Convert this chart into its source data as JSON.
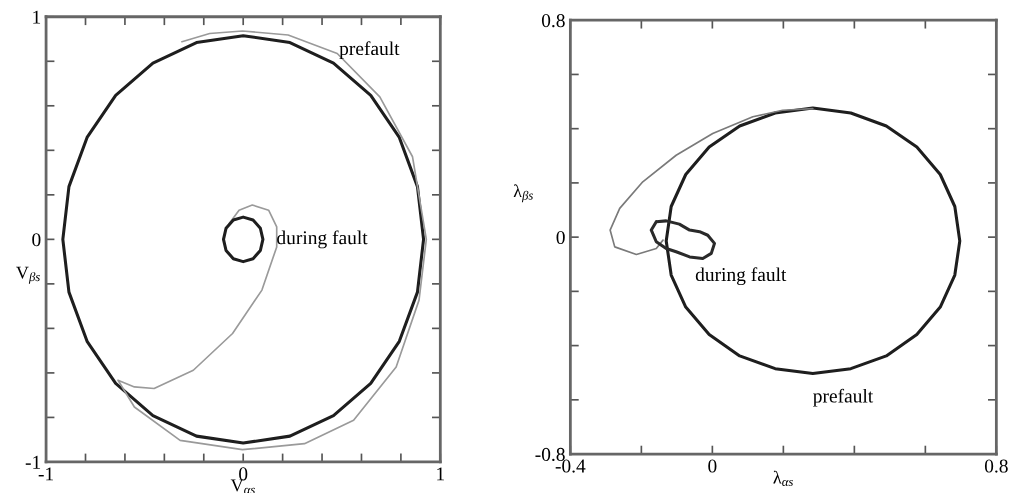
{
  "chart_data": [
    {
      "type": "line",
      "xlabel": "V$_{αs}$",
      "ylabel": "V$_{βs}$",
      "xlim": [
        -1,
        1
      ],
      "ylim": [
        -1,
        1
      ],
      "xticks": [
        -1,
        {
          "value": -0.8,
          "label": null
        },
        {
          "value": -0.6,
          "label": null
        },
        {
          "value": -0.4,
          "label": null
        },
        {
          "value": -0.2,
          "label": null
        },
        0,
        {
          "value": 0.2,
          "label": null
        },
        {
          "value": 0.4,
          "label": null
        },
        {
          "value": 0.6,
          "label": null
        },
        {
          "value": 0.8,
          "label": null
        },
        1
      ],
      "yticks": [
        -1,
        {
          "value": -0.8,
          "label": null
        },
        {
          "value": -0.6,
          "label": null
        },
        {
          "value": -0.4,
          "label": null
        },
        {
          "value": -0.2,
          "label": null
        },
        0,
        {
          "value": 0.2,
          "label": null
        },
        {
          "value": 0.4,
          "label": null
        },
        {
          "value": 0.6,
          "label": null
        },
        {
          "value": 0.8,
          "label": null
        },
        1
      ],
      "series": [
        {
          "color": "#1e1e1e",
          "x": [
            0.915,
            0.884,
            0.792,
            0.647,
            0.458,
            0.237,
            0.0,
            -0.237,
            -0.458,
            -0.647,
            -0.792,
            -0.884,
            -0.915,
            -0.884,
            -0.792,
            -0.647,
            -0.458,
            -0.237,
            0.0,
            0.237,
            0.458,
            0.647,
            0.792,
            0.884,
            0.915,
            0.884
          ],
          "values": [
            0.0,
            0.237,
            0.458,
            0.647,
            0.792,
            0.884,
            0.915,
            0.884,
            0.792,
            0.647,
            0.458,
            0.237,
            0.0,
            -0.237,
            -0.458,
            -0.647,
            -0.792,
            -0.884,
            -0.915,
            -0.884,
            -0.792,
            -0.647,
            -0.458,
            -0.237,
            0.0,
            0.237
          ]
        },
        {
          "color": "#9a9a9a",
          "x": [
            -0.311,
            -0.17,
            -0.004,
            0.228,
            0.477,
            0.693,
            0.859,
            0.929,
            0.892,
            0.776,
            0.56,
            0.311,
            -0.004,
            -0.32,
            -0.552,
            -0.635,
            -0.552,
            -0.452,
            -0.253,
            -0.054,
            0.095,
            0.17,
            0.17,
            0.129,
            0.046,
            -0.021,
            -0.071
          ],
          "values": [
            0.888,
            0.925,
            0.936,
            0.918,
            0.835,
            0.64,
            0.371,
            0.0,
            -0.273,
            -0.573,
            -0.813,
            -0.918,
            -0.945,
            -0.903,
            -0.753,
            -0.633,
            -0.663,
            -0.67,
            -0.588,
            -0.423,
            -0.228,
            -0.034,
            0.056,
            0.131,
            0.154,
            0.131,
            0.071
          ]
        },
        {
          "color": "#1e1e1e",
          "x": [
            0.1,
            0.087,
            0.05,
            0.0,
            -0.05,
            -0.087,
            -0.1,
            -0.087,
            -0.05,
            0.0,
            0.05,
            0.087,
            0.1,
            0.087
          ],
          "values": [
            0.0,
            0.05,
            0.087,
            0.1,
            0.087,
            0.05,
            0.0,
            -0.05,
            -0.087,
            -0.1,
            -0.087,
            -0.05,
            0.0,
            0.05
          ]
        }
      ],
      "annotations": [
        "prefault",
        "during fault"
      ]
    },
    {
      "type": "line",
      "xlabel": "λ$_{αs}$",
      "ylabel": "λ$_{βs}$",
      "xlim": [
        -0.4,
        0.8
      ],
      "ylim": [
        -0.8,
        0.8
      ],
      "xticks": [
        -0.4,
        {
          "value": -0.2,
          "label": null
        },
        0,
        {
          "value": 0.2,
          "label": null
        },
        {
          "value": 0.4,
          "label": null
        },
        {
          "value": 0.6,
          "label": null
        },
        0.8
      ],
      "yticks": [
        -0.8,
        {
          "value": -0.6,
          "label": null
        },
        {
          "value": -0.4,
          "label": null
        },
        {
          "value": -0.2,
          "label": null
        },
        0,
        {
          "value": 0.2,
          "label": null
        },
        {
          "value": 0.4,
          "label": null
        },
        {
          "value": 0.6,
          "label": null
        },
        0.8
      ],
      "series": [
        {
          "color": "#1e1e1e",
          "x": [
            0.697,
            0.683,
            0.642,
            0.576,
            0.49,
            0.39,
            0.283,
            0.177,
            0.077,
            -0.009,
            -0.075,
            -0.116,
            -0.13,
            -0.116,
            -0.075,
            -0.009,
            0.077,
            0.177,
            0.283,
            0.39,
            0.49,
            0.576,
            0.642,
            0.683,
            0.697,
            0.683
          ],
          "values": [
            -0.014,
            0.113,
            0.231,
            0.332,
            0.41,
            0.458,
            0.476,
            0.458,
            0.41,
            0.332,
            0.231,
            0.113,
            -0.014,
            -0.14,
            -0.258,
            -0.359,
            -0.438,
            -0.485,
            -0.503,
            -0.485,
            -0.438,
            -0.359,
            -0.258,
            -0.14,
            -0.014,
            0.113
          ]
        },
        {
          "color": "#7a7a7a",
          "x": [
            0.283,
            0.198,
            0.114,
            0.001,
            -0.102,
            -0.196,
            -0.261,
            -0.288,
            -0.275,
            -0.214,
            -0.158,
            -0.139
          ],
          "values": [
            0.474,
            0.468,
            0.444,
            0.382,
            0.302,
            0.204,
            0.106,
            0.026,
            -0.036,
            -0.064,
            -0.042,
            -0.011
          ]
        },
        {
          "color": "#2a2a2a",
          "x": [
            -0.172,
            -0.158,
            -0.13,
            -0.093,
            -0.064,
            -0.036,
            -0.013,
            0.006,
            -0.003,
            -0.027,
            -0.064,
            -0.102,
            -0.13,
            -0.158,
            -0.172,
            -0.158
          ],
          "values": [
            0.026,
            0.057,
            0.06,
            0.048,
            0.026,
            0.02,
            0.007,
            -0.023,
            -0.06,
            -0.079,
            -0.073,
            -0.054,
            -0.042,
            -0.017,
            0.026,
            0.057
          ]
        }
      ],
      "annotations": [
        "during fault",
        "prefault"
      ]
    }
  ]
}
